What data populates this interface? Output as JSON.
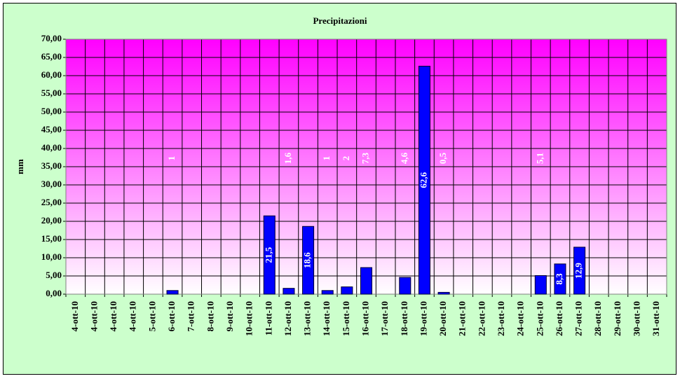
{
  "chart_data": {
    "type": "bar",
    "title": "Precipitazioni",
    "y_label": "mm",
    "categories": [
      "4-ott-10",
      "4-ott-10",
      "4-ott-10",
      "4-ott-10",
      "5-ott-10",
      "6-ott-10",
      "7-ott-10",
      "8-ott-10",
      "9-ott-10",
      "10-ott-10",
      "11-ott-10",
      "12-ott-10",
      "13-ott-10",
      "14-ott-10",
      "15-ott-10",
      "16-ott-10",
      "17-ott-10",
      "18-ott-10",
      "19-ott-10",
      "20-ott-10",
      "21-ott-10",
      "22-ott-10",
      "23-ott-10",
      "24-ott-10",
      "25-ott-10",
      "26-ott-10",
      "27-ott-10",
      "28-ott-10",
      "29-ott-10",
      "30-ott-10",
      "31-ott-10"
    ],
    "values": [
      null,
      null,
      null,
      null,
      null,
      1,
      null,
      null,
      null,
      null,
      21.5,
      1.6,
      18.6,
      1,
      2,
      7.3,
      null,
      4.6,
      62.6,
      0.5,
      null,
      null,
      null,
      null,
      5.1,
      8.3,
      12.9,
      null,
      null,
      null,
      null
    ],
    "value_labels": [
      null,
      null,
      null,
      null,
      null,
      "1",
      null,
      null,
      null,
      null,
      "21,5",
      "1,6",
      "18,6",
      "1",
      "2",
      "7,3",
      null,
      "4,6",
      "62,6",
      "0,5",
      null,
      null,
      null,
      null,
      "5,1",
      "8,3",
      "12,9",
      null,
      null,
      null,
      null
    ],
    "color": "#0000ff",
    "ylim": [
      0,
      70
    ],
    "yticks": [
      {
        "value": 0,
        "label": "0,00"
      },
      {
        "value": 5,
        "label": "5,00"
      },
      {
        "value": 10,
        "label": "10,00"
      },
      {
        "value": 15,
        "label": "15,00"
      },
      {
        "value": 20,
        "label": "20,00"
      },
      {
        "value": 25,
        "label": "25,00"
      },
      {
        "value": 30,
        "label": "30,00"
      },
      {
        "value": 35,
        "label": "35,00"
      },
      {
        "value": 40,
        "label": "40,00"
      },
      {
        "value": 45,
        "label": "45,00"
      },
      {
        "value": 50,
        "label": "50,00"
      },
      {
        "value": 55,
        "label": "55,00"
      },
      {
        "value": 60,
        "label": "60,00"
      },
      {
        "value": 65,
        "label": "65,00"
      },
      {
        "value": 70,
        "label": "70,00"
      }
    ],
    "grid": true
  }
}
